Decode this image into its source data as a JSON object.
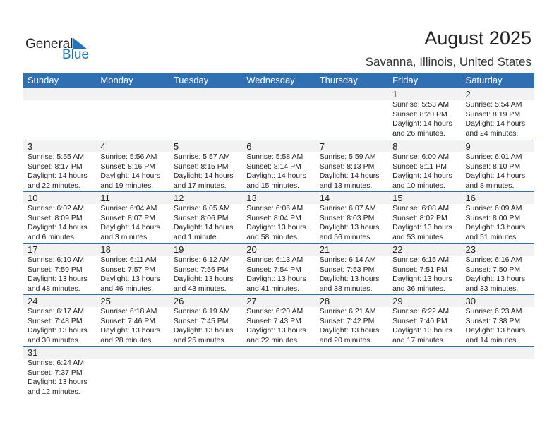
{
  "logo": {
    "general": "General",
    "blue": "Blue",
    "accent": "#1f74c2"
  },
  "title": "August 2025",
  "location": "Savanna, Illinois, United States",
  "header_color": "#2f6fb3",
  "weekdays": [
    "Sunday",
    "Monday",
    "Tuesday",
    "Wednesday",
    "Thursday",
    "Friday",
    "Saturday"
  ],
  "weeks": [
    [
      null,
      null,
      null,
      null,
      null,
      {
        "day": "1",
        "sunrise": "Sunrise: 5:53 AM",
        "sunset": "Sunset: 8:20 PM",
        "daylight1": "Daylight: 14 hours",
        "daylight2": "and 26 minutes."
      },
      {
        "day": "2",
        "sunrise": "Sunrise: 5:54 AM",
        "sunset": "Sunset: 8:19 PM",
        "daylight1": "Daylight: 14 hours",
        "daylight2": "and 24 minutes."
      }
    ],
    [
      {
        "day": "3",
        "sunrise": "Sunrise: 5:55 AM",
        "sunset": "Sunset: 8:17 PM",
        "daylight1": "Daylight: 14 hours",
        "daylight2": "and 22 minutes."
      },
      {
        "day": "4",
        "sunrise": "Sunrise: 5:56 AM",
        "sunset": "Sunset: 8:16 PM",
        "daylight1": "Daylight: 14 hours",
        "daylight2": "and 19 minutes."
      },
      {
        "day": "5",
        "sunrise": "Sunrise: 5:57 AM",
        "sunset": "Sunset: 8:15 PM",
        "daylight1": "Daylight: 14 hours",
        "daylight2": "and 17 minutes."
      },
      {
        "day": "6",
        "sunrise": "Sunrise: 5:58 AM",
        "sunset": "Sunset: 8:14 PM",
        "daylight1": "Daylight: 14 hours",
        "daylight2": "and 15 minutes."
      },
      {
        "day": "7",
        "sunrise": "Sunrise: 5:59 AM",
        "sunset": "Sunset: 8:13 PM",
        "daylight1": "Daylight: 14 hours",
        "daylight2": "and 13 minutes."
      },
      {
        "day": "8",
        "sunrise": "Sunrise: 6:00 AM",
        "sunset": "Sunset: 8:11 PM",
        "daylight1": "Daylight: 14 hours",
        "daylight2": "and 10 minutes."
      },
      {
        "day": "9",
        "sunrise": "Sunrise: 6:01 AM",
        "sunset": "Sunset: 8:10 PM",
        "daylight1": "Daylight: 14 hours",
        "daylight2": "and 8 minutes."
      }
    ],
    [
      {
        "day": "10",
        "sunrise": "Sunrise: 6:02 AM",
        "sunset": "Sunset: 8:09 PM",
        "daylight1": "Daylight: 14 hours",
        "daylight2": "and 6 minutes."
      },
      {
        "day": "11",
        "sunrise": "Sunrise: 6:04 AM",
        "sunset": "Sunset: 8:07 PM",
        "daylight1": "Daylight: 14 hours",
        "daylight2": "and 3 minutes."
      },
      {
        "day": "12",
        "sunrise": "Sunrise: 6:05 AM",
        "sunset": "Sunset: 8:06 PM",
        "daylight1": "Daylight: 14 hours",
        "daylight2": "and 1 minute."
      },
      {
        "day": "13",
        "sunrise": "Sunrise: 6:06 AM",
        "sunset": "Sunset: 8:04 PM",
        "daylight1": "Daylight: 13 hours",
        "daylight2": "and 58 minutes."
      },
      {
        "day": "14",
        "sunrise": "Sunrise: 6:07 AM",
        "sunset": "Sunset: 8:03 PM",
        "daylight1": "Daylight: 13 hours",
        "daylight2": "and 56 minutes."
      },
      {
        "day": "15",
        "sunrise": "Sunrise: 6:08 AM",
        "sunset": "Sunset: 8:02 PM",
        "daylight1": "Daylight: 13 hours",
        "daylight2": "and 53 minutes."
      },
      {
        "day": "16",
        "sunrise": "Sunrise: 6:09 AM",
        "sunset": "Sunset: 8:00 PM",
        "daylight1": "Daylight: 13 hours",
        "daylight2": "and 51 minutes."
      }
    ],
    [
      {
        "day": "17",
        "sunrise": "Sunrise: 6:10 AM",
        "sunset": "Sunset: 7:59 PM",
        "daylight1": "Daylight: 13 hours",
        "daylight2": "and 48 minutes."
      },
      {
        "day": "18",
        "sunrise": "Sunrise: 6:11 AM",
        "sunset": "Sunset: 7:57 PM",
        "daylight1": "Daylight: 13 hours",
        "daylight2": "and 46 minutes."
      },
      {
        "day": "19",
        "sunrise": "Sunrise: 6:12 AM",
        "sunset": "Sunset: 7:56 PM",
        "daylight1": "Daylight: 13 hours",
        "daylight2": "and 43 minutes."
      },
      {
        "day": "20",
        "sunrise": "Sunrise: 6:13 AM",
        "sunset": "Sunset: 7:54 PM",
        "daylight1": "Daylight: 13 hours",
        "daylight2": "and 41 minutes."
      },
      {
        "day": "21",
        "sunrise": "Sunrise: 6:14 AM",
        "sunset": "Sunset: 7:53 PM",
        "daylight1": "Daylight: 13 hours",
        "daylight2": "and 38 minutes."
      },
      {
        "day": "22",
        "sunrise": "Sunrise: 6:15 AM",
        "sunset": "Sunset: 7:51 PM",
        "daylight1": "Daylight: 13 hours",
        "daylight2": "and 36 minutes."
      },
      {
        "day": "23",
        "sunrise": "Sunrise: 6:16 AM",
        "sunset": "Sunset: 7:50 PM",
        "daylight1": "Daylight: 13 hours",
        "daylight2": "and 33 minutes."
      }
    ],
    [
      {
        "day": "24",
        "sunrise": "Sunrise: 6:17 AM",
        "sunset": "Sunset: 7:48 PM",
        "daylight1": "Daylight: 13 hours",
        "daylight2": "and 30 minutes."
      },
      {
        "day": "25",
        "sunrise": "Sunrise: 6:18 AM",
        "sunset": "Sunset: 7:46 PM",
        "daylight1": "Daylight: 13 hours",
        "daylight2": "and 28 minutes."
      },
      {
        "day": "26",
        "sunrise": "Sunrise: 6:19 AM",
        "sunset": "Sunset: 7:45 PM",
        "daylight1": "Daylight: 13 hours",
        "daylight2": "and 25 minutes."
      },
      {
        "day": "27",
        "sunrise": "Sunrise: 6:20 AM",
        "sunset": "Sunset: 7:43 PM",
        "daylight1": "Daylight: 13 hours",
        "daylight2": "and 22 minutes."
      },
      {
        "day": "28",
        "sunrise": "Sunrise: 6:21 AM",
        "sunset": "Sunset: 7:42 PM",
        "daylight1": "Daylight: 13 hours",
        "daylight2": "and 20 minutes."
      },
      {
        "day": "29",
        "sunrise": "Sunrise: 6:22 AM",
        "sunset": "Sunset: 7:40 PM",
        "daylight1": "Daylight: 13 hours",
        "daylight2": "and 17 minutes."
      },
      {
        "day": "30",
        "sunrise": "Sunrise: 6:23 AM",
        "sunset": "Sunset: 7:38 PM",
        "daylight1": "Daylight: 13 hours",
        "daylight2": "and 14 minutes."
      }
    ],
    [
      {
        "day": "31",
        "sunrise": "Sunrise: 6:24 AM",
        "sunset": "Sunset: 7:37 PM",
        "daylight1": "Daylight: 13 hours",
        "daylight2": "and 12 minutes."
      }
    ]
  ]
}
